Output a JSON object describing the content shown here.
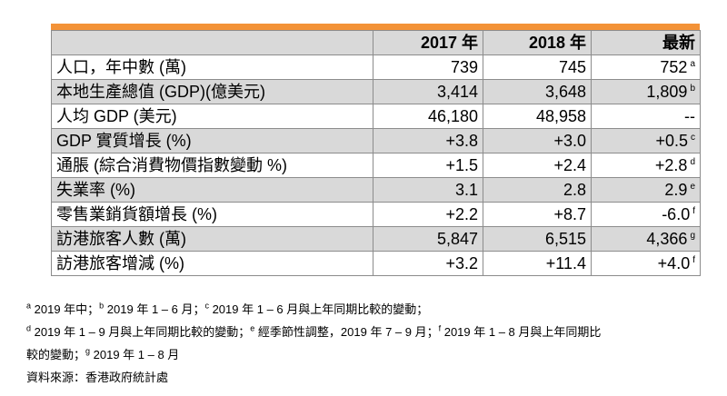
{
  "table": {
    "headers": [
      "",
      "2017 年",
      "2018 年",
      "最新"
    ],
    "rows": [
      {
        "label": "人口，年中數 (萬)",
        "y2017": "739",
        "y2018": "745",
        "latest": "752",
        "note": "a"
      },
      {
        "label": "本地生產總值 (GDP)(億美元)",
        "y2017": "3,414",
        "y2018": "3,648",
        "latest": "1,809",
        "note": "b"
      },
      {
        "label": "人均 GDP (美元)",
        "y2017": "46,180",
        "y2018": "48,958",
        "latest": "--",
        "note": ""
      },
      {
        "label": "GDP 實質增長 (%)",
        "y2017": "+3.8",
        "y2018": "+3.0",
        "latest": "+0.5",
        "note": "c"
      },
      {
        "label": "通脹 (綜合消費物價指數變動 %)",
        "y2017": "+1.5",
        "y2018": "+2.4",
        "latest": "+2.8",
        "note": "d"
      },
      {
        "label": "失業率 (%)",
        "y2017": "3.1",
        "y2018": "2.8",
        "latest": "2.9",
        "note": "e"
      },
      {
        "label": "零售業銷貨額增長 (%)",
        "y2017": "+2.2",
        "y2018": "+8.7",
        "latest": "-6.0",
        "note": "f"
      },
      {
        "label": "訪港旅客人數 (萬)",
        "y2017": "5,847",
        "y2018": "6,515",
        "latest": "4,366",
        "note": "g"
      },
      {
        "label": "訪港旅客增減 (%)",
        "y2017": "+3.2",
        "y2018": "+11.4",
        "latest": "+4.0",
        "note": "f"
      }
    ]
  },
  "footnotes": {
    "line1": {
      "a_mark": "a",
      "a_text": " 2019 年中；",
      "b_mark": "b",
      "b_text": " 2019 年 1 – 6 月；",
      "c_mark": "c",
      "c_text": " 2019 年 1 – 6 月與上年同期比較的變動；"
    },
    "line2": {
      "d_mark": "d",
      "d_text": " 2019 年 1 – 9 月與上年同期比較的變動；",
      "e_mark": "e",
      "e_text": " 經季節性調整，2019 年 7 – 9 月；",
      "f_mark": "f",
      "f_text": " 2019 年 1 – 8 月與上年同期比"
    },
    "line3": {
      "f_cont": "較的變動；",
      "g_mark": "g",
      "g_text": " 2019 年 1 – 8 月"
    },
    "source": "資料來源：香港政府統計處"
  }
}
